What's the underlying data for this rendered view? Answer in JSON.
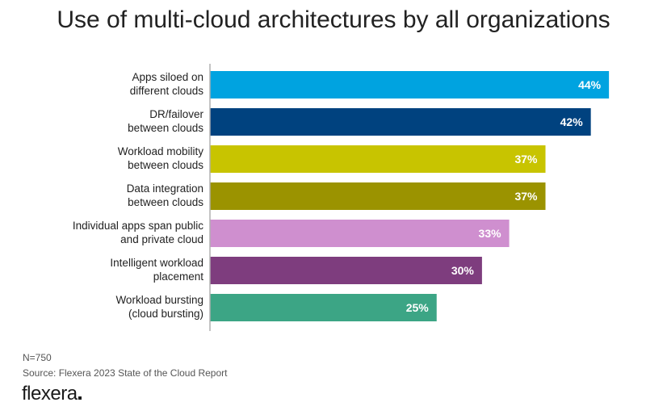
{
  "title": "Use of multi-cloud architectures by all organizations",
  "footer": {
    "n": "N=750",
    "source": "Source: Flexera 2023 State of the Cloud Report",
    "logo": "flexera"
  },
  "chart_data": {
    "type": "bar",
    "orientation": "horizontal",
    "title": "Use of multi-cloud architectures by all organizations",
    "categories": [
      [
        "Apps siloed on",
        "different clouds"
      ],
      [
        "DR/failover",
        "between clouds"
      ],
      [
        "Workload mobility",
        "between clouds"
      ],
      [
        "Data integration",
        "between clouds"
      ],
      [
        "Individual apps span public",
        "and private cloud"
      ],
      [
        "Intelligent workload",
        "placement"
      ],
      [
        "Workload bursting",
        "(cloud bursting)"
      ]
    ],
    "values": [
      44,
      42,
      37,
      37,
      33,
      30,
      25
    ],
    "value_labels": [
      "44%",
      "42%",
      "37%",
      "37%",
      "33%",
      "30%",
      "25%"
    ],
    "unit": "%",
    "colors": [
      "#00a3e0",
      "#00427f",
      "#c8c400",
      "#9b9300",
      "#cf8fcf",
      "#7e3d7e",
      "#3ca585"
    ],
    "grid": false,
    "legend": "none"
  }
}
